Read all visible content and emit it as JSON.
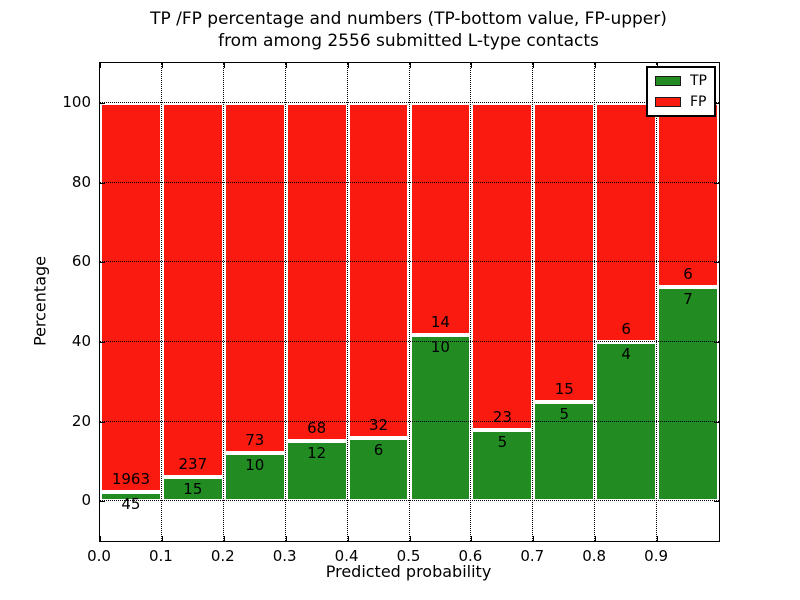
{
  "title": {
    "line1": "TP /FP percentage and numbers (TP-bottom value, FP-upper)",
    "line2": "from among 2556 submitted L-type contacts"
  },
  "axes": {
    "x_label": "Predicted probability",
    "y_label": "Percentage"
  },
  "legend": {
    "position": "upper right",
    "items": [
      {
        "label": "TP",
        "color": "#228b22"
      },
      {
        "label": "FP",
        "color": "#fa1a0f"
      }
    ]
  },
  "chart_data": {
    "type": "bar",
    "stacked": true,
    "normalized_to_percent": true,
    "title": "TP /FP percentage and numbers (TP-bottom value, FP-upper) from among 2556 submitted L-type contacts",
    "xlabel": "Predicted probability",
    "ylabel": "Percentage",
    "total_contacts": 2556,
    "xlim": [
      0.0,
      1.0
    ],
    "ylim": [
      -10,
      110
    ],
    "x_tick_labels": [
      "0.0",
      "0.1",
      "0.2",
      "0.3",
      "0.4",
      "0.5",
      "0.6",
      "0.7",
      "0.8",
      "0.9"
    ],
    "y_tick_values": [
      0,
      20,
      40,
      60,
      80,
      100
    ],
    "grid": "dotted-black",
    "bar_edge_color": "#ffffff",
    "bin_starts": [
      0.0,
      0.1,
      0.2,
      0.3,
      0.4,
      0.5,
      0.6,
      0.7,
      0.8,
      0.9
    ],
    "bin_width": 0.1,
    "series": [
      {
        "name": "TP",
        "color": "#228b22",
        "counts": [
          45,
          15,
          10,
          12,
          6,
          10,
          5,
          5,
          4,
          7
        ],
        "percent": [
          2.24,
          5.95,
          12.05,
          15.0,
          15.79,
          41.67,
          17.86,
          25.0,
          40.0,
          53.85
        ]
      },
      {
        "name": "FP",
        "color": "#fa1a0f",
        "counts": [
          1963,
          237,
          73,
          68,
          32,
          14,
          23,
          15,
          6,
          6
        ],
        "percent": [
          97.76,
          94.05,
          87.95,
          85.0,
          84.21,
          58.33,
          82.14,
          75.0,
          60.0,
          46.15
        ]
      }
    ]
  }
}
